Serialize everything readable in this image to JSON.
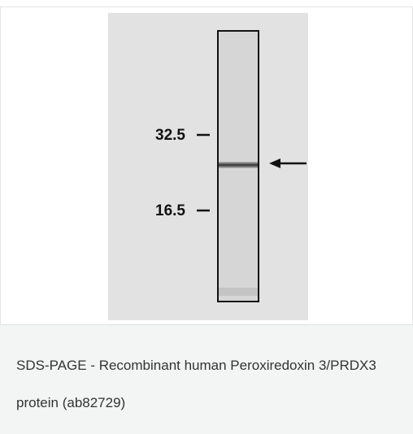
{
  "figure": {
    "markers": [
      "32.5",
      "16.5"
    ],
    "caption": "SDS-PAGE - Recombinant human Peroxiredoxin 3/PRDX3 protein (ab82729)"
  }
}
